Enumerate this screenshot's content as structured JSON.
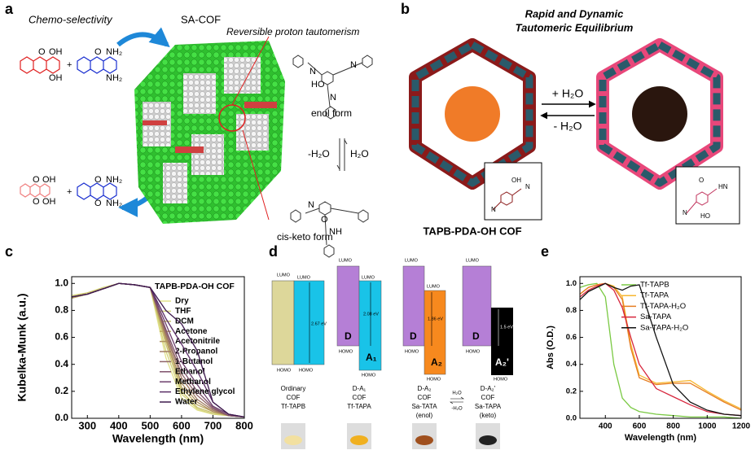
{
  "panel_a": {
    "label": "a",
    "title_left": "Chemo-selectivity",
    "title_right": "SA-COF",
    "tautomerism": "Reversible proton tautomerism",
    "enol": "enol form",
    "minus_water": "-H₂O",
    "water": "H₂O",
    "keto": "cis-keto form",
    "plus": [
      "+",
      "+"
    ],
    "atoms": [
      "OH",
      "OH",
      "NH₂",
      "NH₂",
      "O",
      "O",
      "OH",
      "OH",
      "NH₂",
      "NH₂",
      "O",
      "O",
      "O",
      "O",
      "N",
      "N",
      "HO",
      "N",
      "N",
      "O",
      "NH"
    ]
  },
  "panel_b": {
    "label": "b",
    "title1": "Rapid and Dynamic",
    "title2": "Tautomeric Equilibrium",
    "forward": "+ H₂O",
    "backward": "- H₂O",
    "caption": "TAPB-PDA-OH COF",
    "inset_left": [
      "OH",
      "N",
      "N"
    ],
    "inset_right": [
      "O",
      "HN",
      "N",
      "HO"
    ]
  },
  "panel_d": {
    "label": "d",
    "columns": [
      {
        "texts": [
          "LUMO",
          "LUMO",
          "HOMO",
          "HOMO"
        ],
        "gap": "2.67 eV",
        "caption": [
          "Ordinary",
          "COF",
          "Tf-TAPB"
        ]
      },
      {
        "texts": [
          "LUMO",
          "LUMO",
          "HOMO",
          "HOMO"
        ],
        "donor": "D",
        "acceptor": "A₁",
        "gap": "2.08 eV",
        "caption": [
          "D-A₁",
          "COF",
          "Tf-TAPA"
        ]
      },
      {
        "texts": [
          "LUMO",
          "LUMO",
          "HOMO",
          "HOMO"
        ],
        "donor": "D",
        "acceptor": "A₂",
        "gap": "1.86 eV",
        "caption": [
          "D-A₂",
          "COF",
          "Sa-TATA",
          "(enol)"
        ]
      },
      {
        "texts": [
          "LUMO",
          "HOMO",
          "HOMO"
        ],
        "donor": "D",
        "acceptor": "A₂'",
        "gap": "1.5 eV",
        "caption": [
          "D-A₂'",
          "COF",
          "Sa-TAPA",
          "(keto)"
        ]
      }
    ],
    "arrow_top": "H₂O",
    "arrow_bottom": "-H₂O"
  },
  "chart_data": [
    {
      "type": "line",
      "label": "c",
      "annotation": "TAPB-PDA-OH COF",
      "xlabel": "Wavelength (nm)",
      "ylabel": "Kubelka-Munk (a.u.)",
      "xlim": [
        250,
        800
      ],
      "xticks": [
        300,
        400,
        500,
        600,
        700,
        800
      ],
      "ylim": [
        0,
        1.05
      ],
      "yticks": [
        {
          "value": 0,
          "label": "0.0"
        },
        {
          "value": 0.2,
          "label": "0.2"
        },
        {
          "value": 0.4,
          "label": "0.4"
        },
        {
          "value": 0.6,
          "label": "0.6"
        },
        {
          "value": 0.8,
          "label": "0.8"
        },
        {
          "value": 1,
          "label": "1.0"
        }
      ],
      "x": [
        250,
        300,
        350,
        400,
        450,
        500,
        550,
        600,
        650,
        700,
        750,
        800
      ],
      "series": [
        {
          "name": "Dry",
          "color": "#e2e28c",
          "values": [
            0.9,
            0.92,
            0.96,
            1.0,
            0.99,
            0.97,
            0.45,
            0.15,
            0.06,
            0.03,
            0.02,
            0.01
          ]
        },
        {
          "name": "THF",
          "color": "#d4d47a",
          "values": [
            0.91,
            0.93,
            0.97,
            1.0,
            0.99,
            0.97,
            0.5,
            0.18,
            0.07,
            0.03,
            0.02,
            0.01
          ]
        },
        {
          "name": "DCM",
          "color": "#c8c06a",
          "values": [
            0.9,
            0.93,
            0.96,
            1.0,
            0.99,
            0.97,
            0.55,
            0.2,
            0.08,
            0.04,
            0.02,
            0.01
          ]
        },
        {
          "name": "Acetone",
          "color": "#bca862",
          "values": [
            0.89,
            0.92,
            0.96,
            1.0,
            0.99,
            0.97,
            0.58,
            0.23,
            0.1,
            0.05,
            0.02,
            0.01
          ]
        },
        {
          "name": "Acetonitrile",
          "color": "#ae9060",
          "values": [
            0.9,
            0.92,
            0.96,
            1.0,
            0.99,
            0.97,
            0.6,
            0.26,
            0.12,
            0.05,
            0.02,
            0.01
          ]
        },
        {
          "name": "2-Propanol",
          "color": "#a07a62",
          "values": [
            0.9,
            0.92,
            0.96,
            1.0,
            0.99,
            0.97,
            0.62,
            0.3,
            0.14,
            0.06,
            0.02,
            0.01
          ]
        },
        {
          "name": "1-Butanol",
          "color": "#906468",
          "values": [
            0.9,
            0.92,
            0.96,
            1.0,
            0.99,
            0.97,
            0.64,
            0.33,
            0.17,
            0.07,
            0.02,
            0.01
          ]
        },
        {
          "name": "Ethanol",
          "color": "#7e506a",
          "values": [
            0.9,
            0.92,
            0.96,
            1.0,
            0.99,
            0.97,
            0.66,
            0.37,
            0.2,
            0.08,
            0.02,
            0.01
          ]
        },
        {
          "name": "Methanol",
          "color": "#6c3e6c",
          "values": [
            0.9,
            0.92,
            0.96,
            1.0,
            0.99,
            0.97,
            0.7,
            0.42,
            0.25,
            0.09,
            0.03,
            0.01
          ]
        },
        {
          "name": "Ethylene glycol",
          "color": "#5a2e66",
          "values": [
            0.9,
            0.92,
            0.96,
            1.0,
            0.99,
            0.97,
            0.74,
            0.55,
            0.35,
            0.12,
            0.03,
            0.01
          ]
        },
        {
          "name": "Water",
          "color": "#3e1a4e",
          "values": [
            0.9,
            0.92,
            0.96,
            1.0,
            0.99,
            0.97,
            0.8,
            0.7,
            0.5,
            0.12,
            0.03,
            0.01
          ]
        }
      ]
    },
    {
      "type": "line",
      "label": "e",
      "xlabel": "Wavelength (nm)",
      "ylabel": "Abs (O.D.)",
      "xlim": [
        250,
        1200
      ],
      "xticks": [
        400,
        600,
        800,
        1000,
        1200
      ],
      "ylim": [
        0,
        1.05
      ],
      "yticks": [
        {
          "value": 0,
          "label": "0.0"
        },
        {
          "value": 0.2,
          "label": "0.2"
        },
        {
          "value": 0.4,
          "label": "0.4"
        },
        {
          "value": 0.6,
          "label": "0.6"
        },
        {
          "value": 0.8,
          "label": "0.8"
        },
        {
          "value": 1,
          "label": "1.0"
        }
      ],
      "x": [
        250,
        300,
        350,
        400,
        450,
        500,
        550,
        600,
        700,
        800,
        900,
        1000,
        1100,
        1200
      ],
      "series": [
        {
          "name": "Tf-TAPB",
          "color": "#7ac943",
          "values": [
            0.97,
            0.99,
            1.0,
            0.9,
            0.4,
            0.15,
            0.08,
            0.05,
            0.03,
            0.02,
            0.01,
            0.01,
            0.01,
            0.0
          ]
        },
        {
          "name": "Tf-TAPA",
          "color": "#f7b731",
          "values": [
            0.92,
            0.97,
            0.99,
            1.0,
            0.98,
            0.9,
            0.55,
            0.32,
            0.26,
            0.27,
            0.28,
            0.2,
            0.13,
            0.07
          ]
        },
        {
          "name": "Tf-TAPA-H₂O",
          "color": "#e67e22",
          "values": [
            0.92,
            0.97,
            0.99,
            1.0,
            0.97,
            0.88,
            0.52,
            0.3,
            0.25,
            0.26,
            0.26,
            0.19,
            0.12,
            0.06
          ]
        },
        {
          "name": "Sa-TAPA",
          "color": "#d7263d",
          "values": [
            0.9,
            0.95,
            0.98,
            1.0,
            0.95,
            0.82,
            0.6,
            0.4,
            0.22,
            0.16,
            0.1,
            0.05,
            0.03,
            0.02
          ]
        },
        {
          "name": "Sa-TAPA-H₂O",
          "color": "#111111",
          "values": [
            0.88,
            0.94,
            0.97,
            1.0,
            0.97,
            0.95,
            0.98,
            0.99,
            0.6,
            0.25,
            0.12,
            0.06,
            0.03,
            0.02
          ]
        }
      ]
    }
  ]
}
